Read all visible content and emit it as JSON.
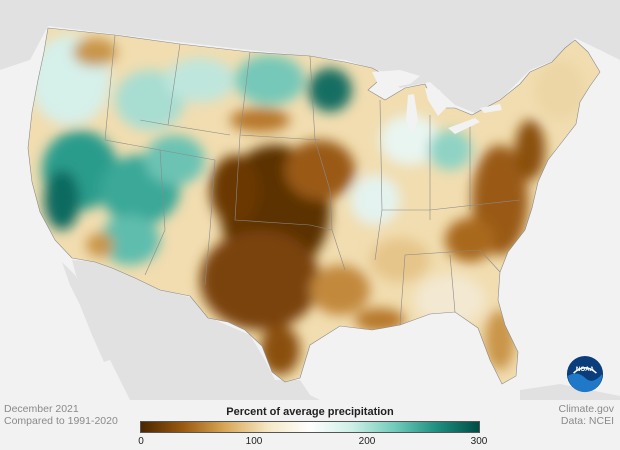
{
  "caption_left": {
    "line1": "December 2021",
    "line2": "Compared to 1991-2020"
  },
  "caption_right": {
    "line1": "Climate.gov",
    "line2": "Data: NCEI"
  },
  "legend": {
    "title": "Percent of average precipitation",
    "ticks": [
      "0",
      "100",
      "200",
      "300"
    ],
    "colors": [
      "#4a2600",
      "#9a5a10",
      "#d9a857",
      "#f5e7c5",
      "#ffffff",
      "#cdeee6",
      "#72cbbb",
      "#1e8f80",
      "#004d45"
    ]
  },
  "logo": {
    "text": "NOAA",
    "colors": {
      "outer": "#0a3d7a",
      "inner": "#1f78c8"
    }
  },
  "map_colors": {
    "background": "#f2f2f2",
    "land_outside": "#e1e1e1",
    "water": "#f2f2f2",
    "state_borders": "#8a8a8a"
  }
}
